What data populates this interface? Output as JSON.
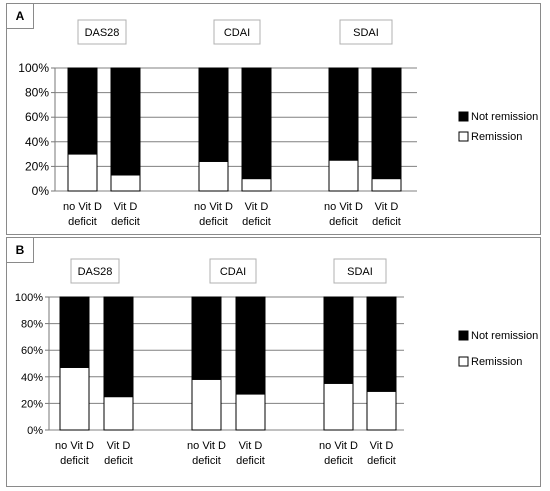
{
  "figure": {
    "panels": [
      {
        "label": "A"
      },
      {
        "label": "B"
      }
    ]
  },
  "chart_data": [
    {
      "type": "bar",
      "stacked": true,
      "panel": "A",
      "groups": [
        "DAS28",
        "CDAI",
        "SDAI"
      ],
      "categories": [
        "no Vit D deficit",
        "Vit D deficit",
        "no Vit D deficit",
        "Vit D deficit",
        "no Vit D deficit",
        "Vit D deficit"
      ],
      "category_lines": [
        [
          "no Vit D",
          "deficit"
        ],
        [
          "Vit D",
          "deficit"
        ],
        [
          "no Vit D",
          "deficit"
        ],
        [
          "Vit D",
          "deficit"
        ],
        [
          "no Vit D",
          "deficit"
        ],
        [
          "Vit D",
          "deficit"
        ]
      ],
      "series": [
        {
          "name": "Remission",
          "values": [
            30,
            13,
            24,
            10,
            25,
            10
          ],
          "color": "#ffffff"
        },
        {
          "name": "Not remission",
          "values": [
            70,
            87,
            76,
            90,
            75,
            90
          ],
          "color": "#000000"
        }
      ],
      "yticks": [
        "0%",
        "20%",
        "40%",
        "60%",
        "80%",
        "100%"
      ],
      "ylim": [
        0,
        100
      ],
      "legend": [
        "Not remission",
        "Remission"
      ],
      "legend_position": "right"
    },
    {
      "type": "bar",
      "stacked": true,
      "panel": "B",
      "groups": [
        "DAS28",
        "CDAI",
        "SDAI"
      ],
      "categories": [
        "no Vit D deficit",
        "Vit D deficit",
        "no Vit D deficit",
        "Vit D deficit",
        "no Vit D deficit",
        "Vit D deficit"
      ],
      "category_lines": [
        [
          "no Vit D",
          "deficit"
        ],
        [
          "Vit D",
          "deficit"
        ],
        [
          "no Vit D",
          "deficit"
        ],
        [
          "Vit D",
          "deficit"
        ],
        [
          "no Vit D",
          "deficit"
        ],
        [
          "Vit D",
          "deficit"
        ]
      ],
      "series": [
        {
          "name": "Remission",
          "values": [
            47,
            25,
            38,
            27,
            35,
            29
          ],
          "color": "#ffffff"
        },
        {
          "name": "Not remission",
          "values": [
            53,
            75,
            62,
            73,
            65,
            71
          ],
          "color": "#000000"
        }
      ],
      "yticks": [
        "0%",
        "20%",
        "40%",
        "60%",
        "80%",
        "100%"
      ],
      "ylim": [
        0,
        100
      ],
      "legend": [
        "Not remission",
        "Remission"
      ],
      "legend_position": "right"
    }
  ]
}
